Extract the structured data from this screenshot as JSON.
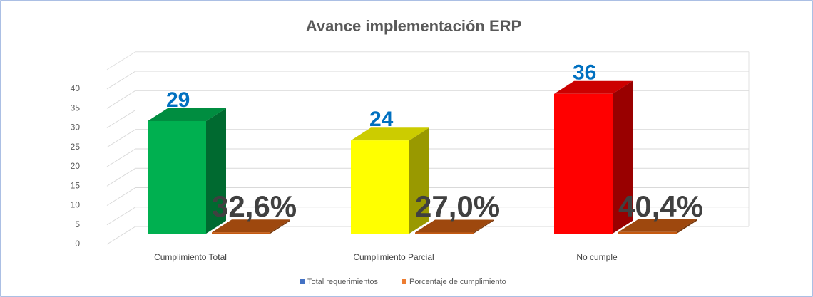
{
  "chart_data": {
    "type": "bar3d",
    "title": "Avance implementación ERP",
    "categories": [
      "Cumplimiento Total",
      "Cumplimiento Parcial",
      "No cumple"
    ],
    "series": [
      {
        "name": "Total requerimientos",
        "color": "#4472c4",
        "point_colors": [
          "#00b050",
          "#ffff00",
          "#ff0000"
        ],
        "values": [
          29,
          24,
          36
        ]
      },
      {
        "name": "Porcentaje de cumplimiento",
        "color": "#ed7d31",
        "point_colors": [
          "#c55a11",
          "#c55a11",
          "#c55a11"
        ],
        "values": [
          0.326,
          0.27,
          0.404
        ],
        "value_labels": [
          "32,6%",
          "27,0%",
          "40,4%"
        ]
      }
    ],
    "ylim": [
      0,
      45
    ],
    "yticks": [
      0,
      5,
      10,
      15,
      20,
      25,
      30,
      35,
      40
    ],
    "grid": true,
    "legend": "bottom"
  }
}
